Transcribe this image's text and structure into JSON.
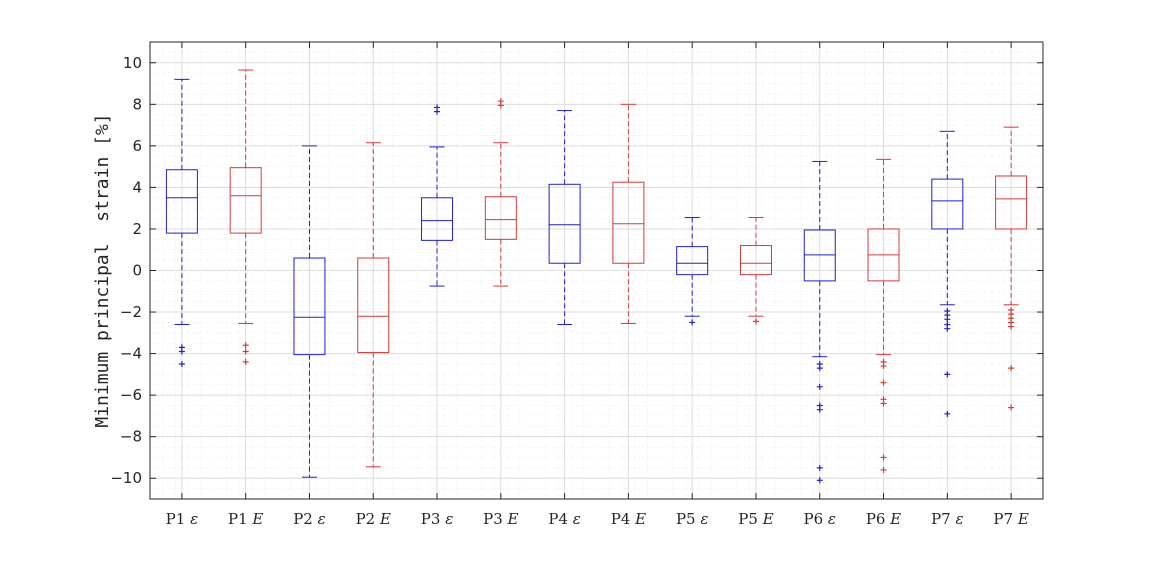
{
  "chart_data": {
    "type": "box",
    "title": "",
    "xlabel": "",
    "ylabel": "Minimum principal  strain [%]",
    "ylim": [
      -11,
      11
    ],
    "yticks": [
      -10,
      -8,
      -6,
      -4,
      -2,
      0,
      2,
      4,
      6,
      8,
      10
    ],
    "ytick_labels": [
      "−10",
      "−8",
      "−6",
      "−4",
      "−2",
      "0",
      "2",
      "4",
      "6",
      "8",
      "10"
    ],
    "grid": true,
    "minor_grid": true,
    "colors": {
      "epsilon": "#1f1fd6",
      "E": "#d63a3a"
    },
    "categories": [
      {
        "base": "P1",
        "sym": "ε"
      },
      {
        "base": "P1",
        "sym": "E"
      },
      {
        "base": "P2",
        "sym": "ε"
      },
      {
        "base": "P2",
        "sym": "E"
      },
      {
        "base": "P3",
        "sym": "ε"
      },
      {
        "base": "P3",
        "sym": "E"
      },
      {
        "base": "P4",
        "sym": "ε"
      },
      {
        "base": "P4",
        "sym": "E"
      },
      {
        "base": "P5",
        "sym": "ε"
      },
      {
        "base": "P5",
        "sym": "E"
      },
      {
        "base": "P6",
        "sym": "ε"
      },
      {
        "base": "P6",
        "sym": "E"
      },
      {
        "base": "P7",
        "sym": "ε"
      },
      {
        "base": "P7",
        "sym": "E"
      }
    ],
    "boxes": [
      {
        "whisker_low": -2.6,
        "q1": 1.8,
        "median": 3.5,
        "q3": 4.85,
        "whisker_high": 9.2,
        "outliers": [
          -3.7,
          -3.9,
          -4.5
        ],
        "color": "#1f1fd6"
      },
      {
        "whisker_low": -2.55,
        "q1": 1.8,
        "median": 3.6,
        "q3": 4.95,
        "whisker_high": 9.65,
        "outliers": [
          -3.6,
          -3.9,
          -4.4
        ],
        "color": "#d63a3a"
      },
      {
        "whisker_low": -9.95,
        "q1": -4.05,
        "median": -2.25,
        "q3": 0.6,
        "whisker_high": 6.0,
        "outliers": [],
        "color": "#1f1fd6"
      },
      {
        "whisker_low": -9.45,
        "q1": -3.95,
        "median": -2.2,
        "q3": 0.6,
        "whisker_high": 6.15,
        "outliers": [],
        "color": "#d63a3a"
      },
      {
        "whisker_low": -0.75,
        "q1": 1.45,
        "median": 2.4,
        "q3": 3.5,
        "whisker_high": 5.95,
        "outliers": [
          7.65,
          7.85
        ],
        "color": "#1f1fd6"
      },
      {
        "whisker_low": -0.75,
        "q1": 1.5,
        "median": 2.45,
        "q3": 3.55,
        "whisker_high": 6.15,
        "outliers": [
          7.95,
          8.15
        ],
        "color": "#d63a3a"
      },
      {
        "whisker_low": -2.6,
        "q1": 0.35,
        "median": 2.2,
        "q3": 4.15,
        "whisker_high": 7.7,
        "outliers": [],
        "color": "#1f1fd6"
      },
      {
        "whisker_low": -2.55,
        "q1": 0.35,
        "median": 2.25,
        "q3": 4.25,
        "whisker_high": 8.0,
        "outliers": [],
        "color": "#d63a3a"
      },
      {
        "whisker_low": -2.2,
        "q1": -0.2,
        "median": 0.35,
        "q3": 1.15,
        "whisker_high": 2.55,
        "outliers": [
          -2.5
        ],
        "color": "#1f1fd6"
      },
      {
        "whisker_low": -2.2,
        "q1": -0.2,
        "median": 0.35,
        "q3": 1.2,
        "whisker_high": 2.55,
        "outliers": [
          -2.45
        ],
        "color": "#d63a3a"
      },
      {
        "whisker_low": -4.15,
        "q1": -0.5,
        "median": 0.75,
        "q3": 1.95,
        "whisker_high": 5.25,
        "outliers": [
          -4.5,
          -4.7,
          -5.6,
          -6.5,
          -6.7,
          -9.5,
          -10.1
        ],
        "color": "#1f1fd6"
      },
      {
        "whisker_low": -4.05,
        "q1": -0.5,
        "median": 0.75,
        "q3": 2.0,
        "whisker_high": 5.35,
        "outliers": [
          -4.4,
          -4.6,
          -5.4,
          -6.2,
          -6.4,
          -9.0,
          -9.6
        ],
        "color": "#d63a3a"
      },
      {
        "whisker_low": -1.65,
        "q1": 2.0,
        "median": 3.35,
        "q3": 4.4,
        "whisker_high": 6.7,
        "outliers": [
          -1.95,
          -2.15,
          -2.35,
          -2.6,
          -2.8,
          -5.0,
          -6.9
        ],
        "color": "#1f1fd6"
      },
      {
        "whisker_low": -1.65,
        "q1": 2.0,
        "median": 3.45,
        "q3": 4.55,
        "whisker_high": 6.9,
        "outliers": [
          -1.9,
          -2.1,
          -2.3,
          -2.5,
          -2.7,
          -4.7,
          -6.6
        ],
        "color": "#d63a3a"
      }
    ]
  }
}
